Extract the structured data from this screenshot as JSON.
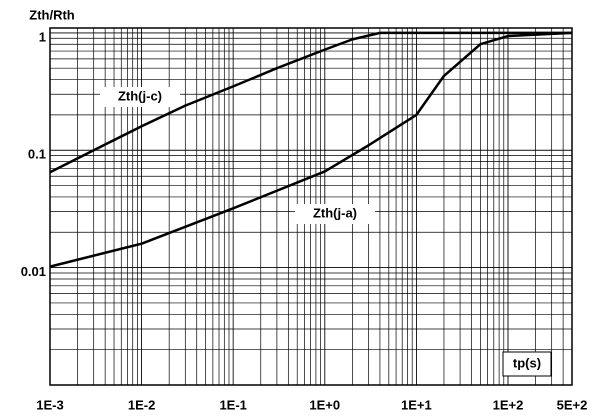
{
  "chart_data": {
    "type": "line",
    "ylabel": "Zth/Rth",
    "xlabel": "tp(s)",
    "xlog": true,
    "ylog": true,
    "grid": true,
    "minor_grid": true,
    "xlim": [
      0.001,
      500
    ],
    "ylim": [
      0.001,
      1.1
    ],
    "xticks": [
      {
        "value": 0.001,
        "label": "1E-3"
      },
      {
        "value": 0.01,
        "label": "1E-2"
      },
      {
        "value": 0.1,
        "label": "1E-1"
      },
      {
        "value": 1,
        "label": "1E+0"
      },
      {
        "value": 10,
        "label": "1E+1"
      },
      {
        "value": 100,
        "label": "1E+2"
      },
      {
        "value": 500,
        "label": "5E+2"
      }
    ],
    "yticks": [
      0.01,
      0.1,
      1
    ],
    "series": [
      {
        "name": "Zth(j-c)",
        "color": "#000000",
        "x": [
          0.001,
          0.003,
          0.01,
          0.03,
          0.1,
          0.3,
          1,
          2,
          4,
          500
        ],
        "values": [
          0.065,
          0.1,
          0.16,
          0.24,
          0.35,
          0.5,
          0.72,
          0.88,
          1,
          1
        ]
      },
      {
        "name": "Zth(j-a)",
        "color": "#000000",
        "x": [
          0.001,
          0.01,
          0.1,
          1,
          3,
          10,
          20,
          50,
          100,
          500
        ],
        "values": [
          0.0102,
          0.016,
          0.032,
          0.066,
          0.11,
          0.2,
          0.43,
          0.8,
          0.94,
          1
        ]
      }
    ]
  }
}
